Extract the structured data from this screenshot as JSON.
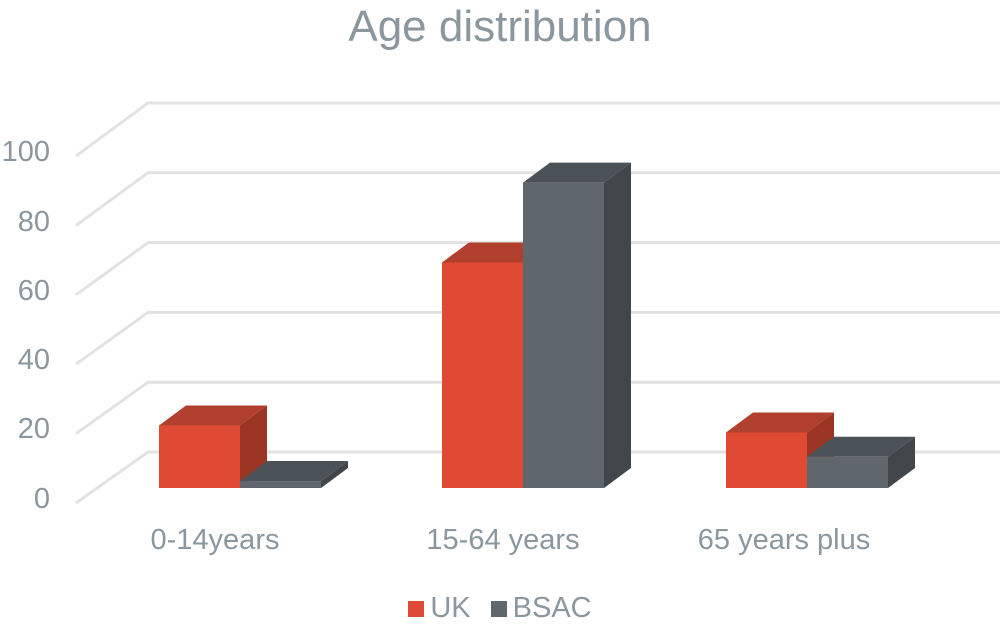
{
  "chart_data": {
    "type": "bar",
    "title": "Age distribution",
    "xlabel": "",
    "ylabel": "",
    "categories": [
      "0-14years",
      "15-64 years",
      "65 years plus"
    ],
    "series": [
      {
        "name": "UK",
        "values": [
          18,
          65,
          16
        ],
        "color": "#df4a35"
      },
      {
        "name": "BSAC",
        "values": [
          2,
          88,
          9
        ],
        "color": "#5f666c"
      }
    ],
    "ylim": [
      0,
      100
    ],
    "yticks": [
      "0",
      "20",
      "40",
      "60",
      "80",
      "100"
    ],
    "grid": true,
    "legend_position": "bottom",
    "style": "3d-clustered-column"
  },
  "legend": {
    "items": [
      {
        "label": "UK"
      },
      {
        "label": "BSAC"
      }
    ]
  }
}
